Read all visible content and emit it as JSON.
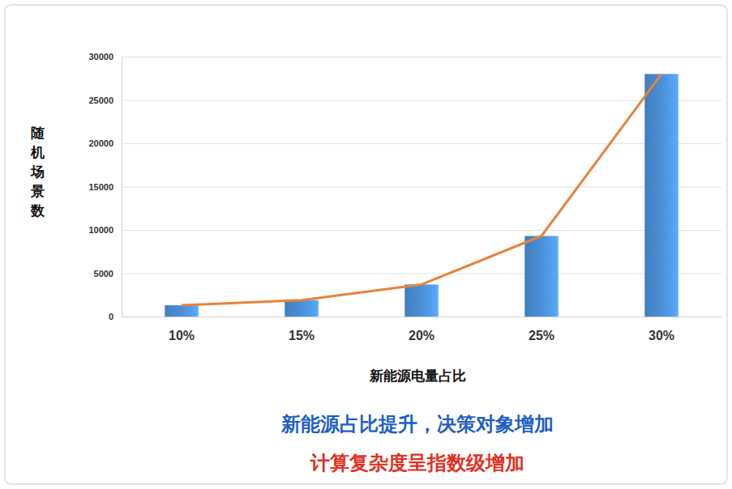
{
  "chart_data": {
    "type": "bar",
    "x_label": "新能源电量占比",
    "y_label": "随机场景数",
    "categories": [
      "10%",
      "15%",
      "20%",
      "25%",
      "30%"
    ],
    "series": [
      {
        "type": "bar",
        "color": "#4a8fd6",
        "values": [
          1300,
          1900,
          3700,
          9300,
          28000
        ]
      },
      {
        "type": "line",
        "color": "#e8823a",
        "values": [
          1300,
          1900,
          3700,
          9300,
          28000
        ]
      }
    ],
    "ylim": [
      0,
      30000
    ],
    "yticks": [
      0,
      5000,
      10000,
      15000,
      20000,
      25000,
      30000
    ],
    "grid": true,
    "annotations": [
      {
        "text": "新能源占比提升，决策对象增加",
        "color": "#1f5fc4"
      },
      {
        "text": "计算复杂度呈指数级增加",
        "color": "#e0301e"
      }
    ]
  }
}
